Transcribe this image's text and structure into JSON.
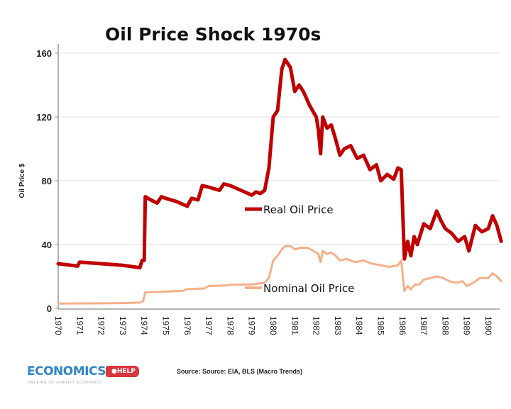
{
  "chart_data": {
    "type": "line",
    "title": "Oil Price Shock 1970s",
    "xlabel": "",
    "ylabel": "Oil Price $",
    "ylim": [
      0,
      170
    ],
    "xlim": [
      1970,
      1990.7
    ],
    "yticks": [
      0,
      40,
      80,
      120,
      160
    ],
    "xticks": [
      "1970",
      "1971",
      "1972",
      "1973",
      "1974",
      "1975",
      "1976",
      "1977",
      "1978",
      "1979",
      "1980",
      "1981",
      "1982",
      "1983",
      "1984",
      "1985",
      "1986",
      "1987",
      "1988",
      "1989",
      "1990"
    ],
    "grid": "horizontal",
    "legend": "inline-labels",
    "series": [
      {
        "name": "Real Oil Price",
        "color": "#c00000",
        "x": [
          1970,
          1970.9,
          1971.0,
          1972.0,
          1973.0,
          1973.8,
          1973.9,
          1974.0,
          1974.05,
          1974.3,
          1974.6,
          1974.8,
          1975.0,
          1975.5,
          1976.0,
          1976.2,
          1976.5,
          1976.7,
          1977.0,
          1977.5,
          1977.7,
          1978.0,
          1978.5,
          1979.0,
          1979.2,
          1979.4,
          1979.6,
          1979.8,
          1980.0,
          1980.2,
          1980.4,
          1980.55,
          1980.8,
          1981.0,
          1981.2,
          1981.4,
          1981.7,
          1982.0,
          1982.1,
          1982.2,
          1982.3,
          1982.5,
          1982.7,
          1982.9,
          1983.1,
          1983.3,
          1983.6,
          1983.9,
          1984.2,
          1984.5,
          1984.8,
          1985.0,
          1985.3,
          1985.6,
          1985.8,
          1985.95,
          1986.1,
          1986.25,
          1986.4,
          1986.55,
          1986.7,
          1987.0,
          1987.3,
          1987.6,
          1987.8,
          1988.0,
          1988.3,
          1988.6,
          1988.9,
          1989.1,
          1989.4,
          1989.7,
          1990.0,
          1990.2,
          1990.4,
          1990.6
        ],
        "values": [
          28,
          26.5,
          29,
          28,
          27,
          25.5,
          30,
          30,
          70,
          68,
          66,
          70,
          69,
          67,
          64,
          69,
          68,
          77,
          76,
          74,
          78,
          77,
          74,
          71,
          73,
          72,
          74,
          88,
          120,
          124,
          150,
          156,
          151,
          136,
          140,
          136,
          127,
          120,
          112,
          97,
          120,
          113,
          115,
          106,
          96,
          100,
          102,
          94,
          96,
          87,
          90,
          80,
          84,
          81,
          88,
          87,
          31,
          42,
          33,
          45,
          40,
          53,
          50,
          61,
          55,
          50,
          47,
          42,
          45,
          36,
          52,
          48,
          50,
          58,
          52,
          42
        ]
      },
      {
        "name": "Nominal Oil Price",
        "color": "#f4b08a",
        "x": [
          1970,
          1973.0,
          1973.8,
          1973.95,
          1974.05,
          1975.0,
          1975.8,
          1976.0,
          1976.8,
          1977.0,
          1977.8,
          1978.0,
          1979.0,
          1979.3,
          1979.6,
          1979.8,
          1980.0,
          1980.2,
          1980.4,
          1980.55,
          1980.8,
          1981.0,
          1981.3,
          1981.6,
          1982.0,
          1982.1,
          1982.2,
          1982.3,
          1982.5,
          1982.7,
          1982.9,
          1983.1,
          1983.4,
          1983.8,
          1984.2,
          1984.6,
          1985.0,
          1985.4,
          1985.8,
          1985.95,
          1986.1,
          1986.25,
          1986.4,
          1986.6,
          1986.8,
          1987.0,
          1987.3,
          1987.6,
          1987.9,
          1988.2,
          1988.5,
          1988.8,
          1989.0,
          1989.3,
          1989.6,
          1990.0,
          1990.2,
          1990.4,
          1990.6
        ],
        "values": [
          3,
          3.3,
          3.6,
          4.5,
          10,
          10.5,
          11,
          12,
          12.5,
          14,
          14.3,
          14.8,
          15,
          15.5,
          16,
          19,
          30,
          33,
          37,
          39,
          39,
          37,
          38,
          38,
          35,
          34,
          29,
          36,
          34,
          35,
          33,
          30,
          31,
          29,
          30,
          28,
          27,
          26,
          27,
          30,
          11,
          14,
          12,
          15,
          15,
          18,
          19,
          20,
          19,
          17,
          16,
          17,
          14,
          16,
          19,
          19,
          22,
          20,
          17
        ]
      }
    ],
    "source": "Source: Source: EIA, BLS (Macro Trends)"
  },
  "branding": {
    "logo_word": "ECONOMICS",
    "logo_tag": "●HELP",
    "logo_sub": "HELPING TO SIMPLIFY ECONOMICS"
  }
}
